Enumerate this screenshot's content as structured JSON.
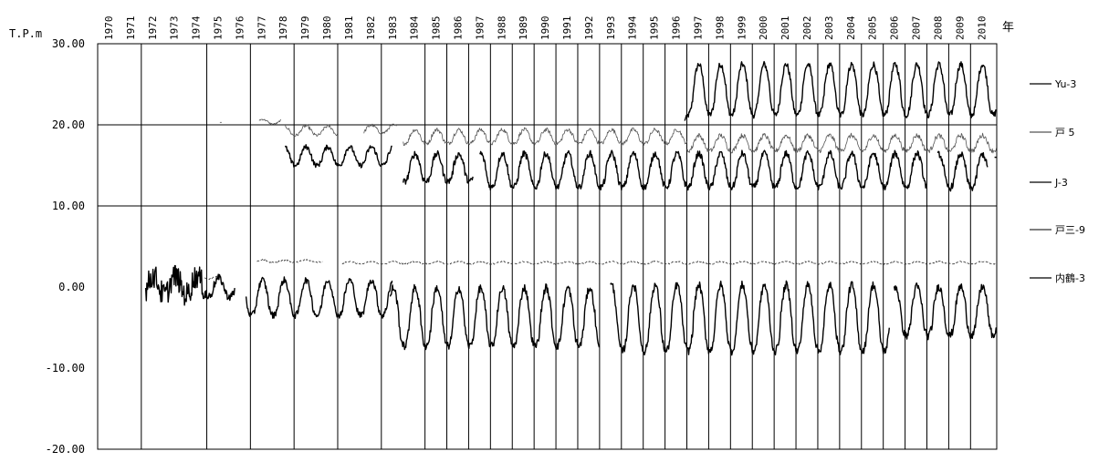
{
  "chart_data": {
    "type": "line",
    "ylabel": "T.P.m",
    "xlabel": "年",
    "ylim": [
      -20,
      30
    ],
    "yticks": [
      {
        "v": 30,
        "label": "30.00"
      },
      {
        "v": 20,
        "label": "20.00"
      },
      {
        "v": 10,
        "label": "10.00"
      },
      {
        "v": 0,
        "label": "0.00"
      },
      {
        "v": -10,
        "label": "-10.00"
      },
      {
        "v": -20,
        "label": "-20.00"
      }
    ],
    "xlim": [
      1970,
      2011.2
    ],
    "year_labels": [
      "1970",
      "1971",
      "1972",
      "1973",
      "1974",
      "1975",
      "1976",
      "1977",
      "1978",
      "1979",
      "1980",
      "1981",
      "1982",
      "1983",
      "1984",
      "1985",
      "1986",
      "1987",
      "1988",
      "1989",
      "1990",
      "1991",
      "1992",
      "1993",
      "1994",
      "1995",
      "1996",
      "1997",
      "1998",
      "1999",
      "2000",
      "2001",
      "2002",
      "2003",
      "2004",
      "2005",
      "2006",
      "2007",
      "2008",
      "2009",
      "2010"
    ],
    "vertical_grid_years": [
      1972,
      1975,
      1977,
      1979,
      1981,
      1983,
      1985,
      1986,
      1987,
      1988,
      1989,
      1990,
      1991,
      1992,
      1993,
      1994,
      1995,
      1996,
      1997,
      1998,
      1999,
      2000,
      2001,
      2002,
      2003,
      2004,
      2005,
      2006,
      2007,
      2008,
      2009,
      2010
    ],
    "horizontal_grid": [
      10,
      20
    ],
    "legend_position": "right",
    "series": [
      {
        "name": "Yu-3",
        "color": "#000000",
        "line": "solid",
        "segments": [
          {
            "start": 1996.9,
            "end": 2011.2,
            "mean": 24.5,
            "amplitude": 3.3,
            "noise": 0.4,
            "start_value": 20.5
          }
        ]
      },
      {
        "name": "戸 5",
        "color": "#555555",
        "line": "thin",
        "segments": [
          {
            "start": 1975.6,
            "end": 1975.7,
            "mean": 20.3,
            "amplitude": 0,
            "noise": 0
          },
          {
            "start": 1977.4,
            "end": 1978.4,
            "mean": 20.4,
            "amplitude": 0.3,
            "noise": 0.1
          },
          {
            "start": 1978.6,
            "end": 1981.0,
            "mean": 19.3,
            "amplitude": 0.6,
            "noise": 0.2
          },
          {
            "start": 1982.2,
            "end": 1983.7,
            "mean": 19.5,
            "amplitude": 0.5,
            "noise": 0.2
          },
          {
            "start": 1984.0,
            "end": 1997.0,
            "mean": 18.6,
            "amplitude": 0.9,
            "noise": 0.25
          },
          {
            "start": 1997.0,
            "end": 2011.2,
            "mean": 17.8,
            "amplitude": 1.0,
            "noise": 0.3
          }
        ]
      },
      {
        "name": "J-3",
        "color": "#000000",
        "line": "solid",
        "segments": [
          {
            "start": 1978.6,
            "end": 1983.5,
            "mean": 16.2,
            "amplitude": 1.2,
            "noise": 0.3
          },
          {
            "start": 1984.0,
            "end": 1987.2,
            "mean": 14.8,
            "amplitude": 1.8,
            "noise": 0.4
          },
          {
            "start": 1987.5,
            "end": 2008.0,
            "mean": 14.5,
            "amplitude": 2.2,
            "noise": 0.4
          },
          {
            "start": 2008.5,
            "end": 2010.8,
            "mean": 14.4,
            "amplitude": 2.2,
            "noise": 0.4
          },
          {
            "start": 2011.1,
            "end": 2011.2,
            "mean": 16.0,
            "amplitude": 0,
            "noise": 0
          }
        ]
      },
      {
        "name": "戸三-9",
        "color": "#333333",
        "line": "dashed",
        "segments": [
          {
            "start": 1974.9,
            "end": 1975.7,
            "mean": 1.2,
            "amplitude": 0.2,
            "noise": 0.1
          },
          {
            "start": 1977.3,
            "end": 1980.3,
            "mean": 3.2,
            "amplitude": 0.15,
            "noise": 0.1
          },
          {
            "start": 1981.2,
            "end": 2011.2,
            "mean": 3.0,
            "amplitude": 0.15,
            "noise": 0.08
          }
        ]
      },
      {
        "name": "内鶴-3",
        "color": "#000000",
        "line": "solid",
        "segments": [
          {
            "start": 1972.2,
            "end": 1975.0,
            "mean": 0.3,
            "amplitude": 1.2,
            "noise": 1.5
          },
          {
            "start": 1975.0,
            "end": 1976.3,
            "mean": 0.0,
            "amplitude": 1.2,
            "noise": 0.5
          },
          {
            "start": 1976.8,
            "end": 1983.5,
            "mean": -1.2,
            "amplitude": 2.3,
            "noise": 0.4
          },
          {
            "start": 1983.4,
            "end": 1993.0,
            "mean": -3.5,
            "amplitude": 3.8,
            "noise": 0.5
          },
          {
            "start": 1993.5,
            "end": 2006.3,
            "mean": -3.6,
            "amplitude": 4.3,
            "noise": 0.5
          },
          {
            "start": 2006.5,
            "end": 2011.2,
            "mean": -2.8,
            "amplitude": 3.2,
            "noise": 0.5
          }
        ]
      }
    ],
    "legend": [
      {
        "series": "Yu-3",
        "label": "Yu-3"
      },
      {
        "series": "戸 5",
        "label": "戸 5"
      },
      {
        "series": "J-3",
        "label": "J-3"
      },
      {
        "series": "戸三-9",
        "label": "戸三-9"
      },
      {
        "series": "内鶴-3",
        "label": "内鶴-3"
      }
    ]
  }
}
